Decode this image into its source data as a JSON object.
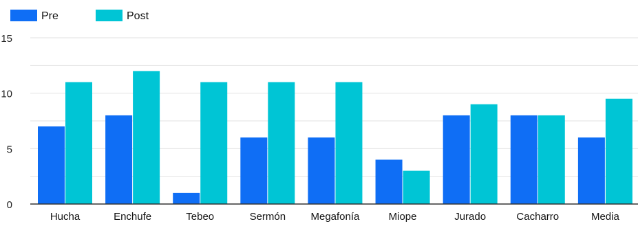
{
  "chart_data": {
    "type": "bar",
    "title": "",
    "xlabel": "",
    "ylabel": "",
    "categories": [
      "Hucha",
      "Enchufe",
      "Tebeo",
      "Sermón",
      "Megafonía",
      "Miope",
      "Jurado",
      "Cacharro",
      "Media"
    ],
    "series": [
      {
        "name": "Pre",
        "color": "#0f6ef5",
        "values": [
          7,
          8,
          1,
          6,
          6,
          4,
          8,
          8,
          6
        ]
      },
      {
        "name": "Post",
        "color": "#00c5d5",
        "values": [
          11,
          12,
          11,
          11,
          11,
          3,
          9,
          8,
          9.5
        ]
      }
    ],
    "ylim": [
      0,
      15
    ],
    "yticks": [
      0,
      5,
      10,
      15
    ],
    "grid": true,
    "legend_position": "top-left"
  },
  "colors": {
    "gridline": "#e2e2e2",
    "axis": "#333333",
    "tick_text": "#222222",
    "category_text": "#111111"
  }
}
